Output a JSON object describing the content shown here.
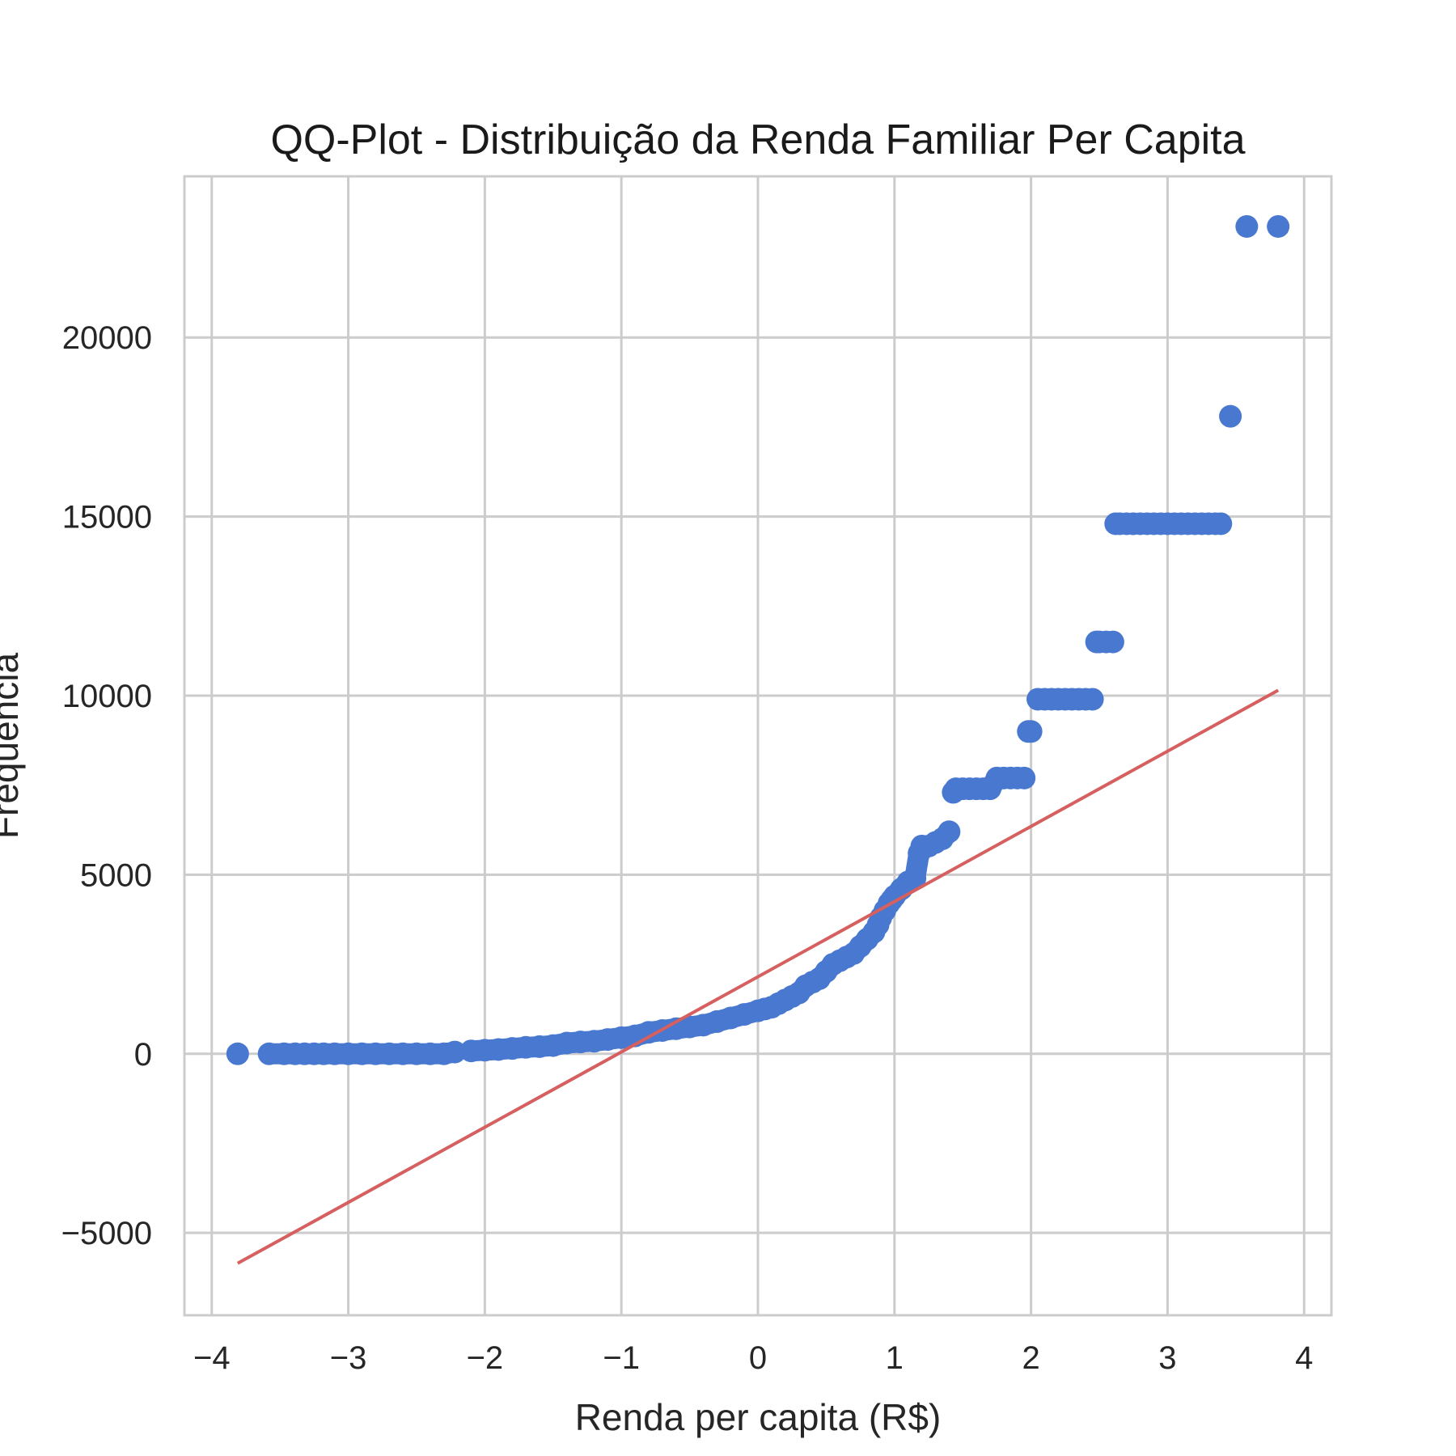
{
  "chart_data": {
    "type": "scatter",
    "title": "QQ-Plot - Distribuição da Renda Familiar Per Capita",
    "xlabel": "Renda per capita (R$)",
    "ylabel": "Frequência",
    "xlim": [
      -4.2,
      4.2
    ],
    "ylim": [
      -7300,
      24500
    ],
    "grid": true,
    "x_ticks": [
      -4,
      -3,
      -2,
      -1,
      0,
      1,
      2,
      3,
      4
    ],
    "x_tick_labels": [
      "−4",
      "−3",
      "−2",
      "−1",
      "0",
      "1",
      "2",
      "3",
      "4"
    ],
    "y_ticks": [
      -5000,
      0,
      5000,
      10000,
      15000,
      20000
    ],
    "y_tick_labels": [
      "−5000",
      "0",
      "5000",
      "10000",
      "15000",
      "20000"
    ],
    "colors": {
      "points": "#4878cf",
      "line": "#d65f5f",
      "grid": "#cccccc",
      "spine": "#cccccc",
      "text": "#262626"
    },
    "series": [
      {
        "kind": "points",
        "x": [
          -3.81,
          -3.58,
          -3.47,
          -3.39,
          -3.32,
          -3.25,
          -3.18,
          -3.1,
          -3.0,
          -2.9,
          -2.8,
          -2.7,
          -2.6,
          -2.5,
          -2.4,
          -2.3,
          -2.22,
          -2.1,
          -2.0,
          -1.9,
          -1.8,
          -1.7,
          -1.6,
          -1.5,
          -1.4,
          -1.3,
          -1.2,
          -1.1,
          -1.0,
          -0.9,
          -0.8,
          -0.7,
          -0.6,
          -0.5,
          -0.4,
          -0.3,
          -0.2,
          -0.1,
          0.0,
          0.05,
          0.1,
          0.15,
          0.2,
          0.25,
          0.3,
          0.35,
          0.4,
          0.45,
          0.5,
          0.55,
          0.6,
          0.65,
          0.7,
          0.75,
          0.8,
          0.85,
          0.88,
          0.9,
          0.93,
          0.96,
          0.98,
          1.0,
          1.05,
          1.1,
          1.15,
          1.18,
          1.2,
          1.25,
          1.3,
          1.35,
          1.4,
          1.43,
          1.45,
          1.5,
          1.55,
          1.6,
          1.65,
          1.7,
          1.75,
          1.8,
          1.85,
          1.9,
          1.95,
          1.98,
          2.0,
          2.05,
          2.1,
          2.15,
          2.2,
          2.25,
          2.3,
          2.35,
          2.4,
          2.45,
          2.48,
          2.5,
          2.55,
          2.6,
          2.62,
          2.65,
          2.7,
          2.75,
          2.8,
          2.85,
          2.9,
          2.95,
          3.0,
          3.05,
          3.1,
          3.15,
          3.2,
          3.25,
          3.3,
          3.35,
          3.39,
          3.46,
          3.58,
          3.81
        ],
        "y": [
          0,
          0,
          0,
          0,
          0,
          0,
          0,
          0,
          0,
          0,
          0,
          0,
          0,
          0,
          0,
          0,
          50,
          80,
          100,
          120,
          150,
          180,
          200,
          230,
          300,
          330,
          350,
          400,
          450,
          500,
          600,
          650,
          700,
          750,
          800,
          900,
          1000,
          1100,
          1200,
          1250,
          1300,
          1400,
          1500,
          1600,
          1700,
          1900,
          2000,
          2100,
          2300,
          2500,
          2600,
          2700,
          2800,
          3000,
          3200,
          3400,
          3600,
          3800,
          4000,
          4200,
          4300,
          4400,
          4600,
          4800,
          4900,
          5600,
          5800,
          5800,
          5900,
          6000,
          6200,
          7300,
          7400,
          7400,
          7400,
          7400,
          7400,
          7400,
          7700,
          7700,
          7700,
          7700,
          7700,
          9000,
          9000,
          9900,
          9900,
          9900,
          9900,
          9900,
          9900,
          9900,
          9900,
          9900,
          11500,
          11500,
          11500,
          11500,
          14800,
          14800,
          14800,
          14800,
          14800,
          14800,
          14800,
          14800,
          14800,
          14800,
          14800,
          14800,
          14800,
          14800,
          14800,
          14800,
          14800,
          17800,
          23100,
          23100
        ]
      },
      {
        "kind": "line",
        "x": [
          -3.81,
          3.81
        ],
        "y": [
          -5850,
          10150
        ]
      }
    ]
  }
}
